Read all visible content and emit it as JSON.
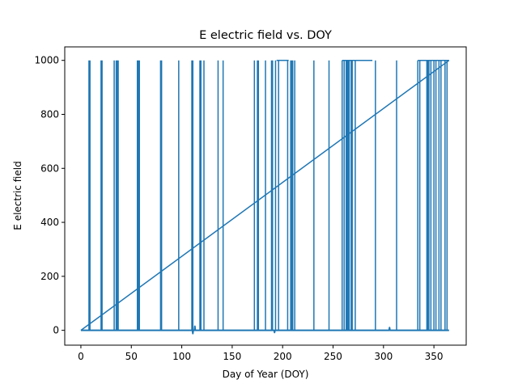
{
  "chart_data": {
    "type": "line",
    "title": "E electric field vs. DOY",
    "xlabel": "Day of Year (DOY)",
    "ylabel": "E electric field",
    "xlim": [
      -16,
      382
    ],
    "ylim": [
      -55,
      1050
    ],
    "xticks": [
      0,
      50,
      100,
      150,
      200,
      250,
      300,
      350
    ],
    "yticks": [
      0,
      200,
      400,
      600,
      800,
      1000
    ],
    "grid": false,
    "legend": "none",
    "series": [
      {
        "color": "#1f77b4",
        "spikes_to_1000_at_doy": [
          8,
          9,
          20,
          21,
          33,
          35,
          36,
          37,
          56,
          57,
          58,
          79,
          80,
          97,
          110,
          111,
          118,
          119,
          122,
          136,
          141,
          172,
          175,
          176,
          183,
          189,
          190,
          193,
          196,
          205,
          208,
          209,
          210,
          212,
          231,
          246,
          259,
          261,
          263,
          264,
          265,
          266,
          268,
          269,
          272,
          292,
          313,
          334,
          336,
          343,
          344,
          345,
          347,
          350,
          352,
          355,
          357,
          361,
          363
        ],
        "plateaus_at_1000_doy": [
          [
            194,
            206
          ],
          [
            259,
            289
          ],
          [
            334,
            365
          ]
        ],
        "baseline_value": 0,
        "baseline_range_doy": [
          0,
          365
        ],
        "baseline_dips": [
          [
            111,
            -12
          ],
          [
            113,
            15
          ],
          [
            192,
            -8
          ],
          [
            306,
            10
          ]
        ],
        "wrap_line": {
          "from": [
            0,
            0
          ],
          "to": [
            365,
            1000
          ]
        }
      }
    ]
  }
}
